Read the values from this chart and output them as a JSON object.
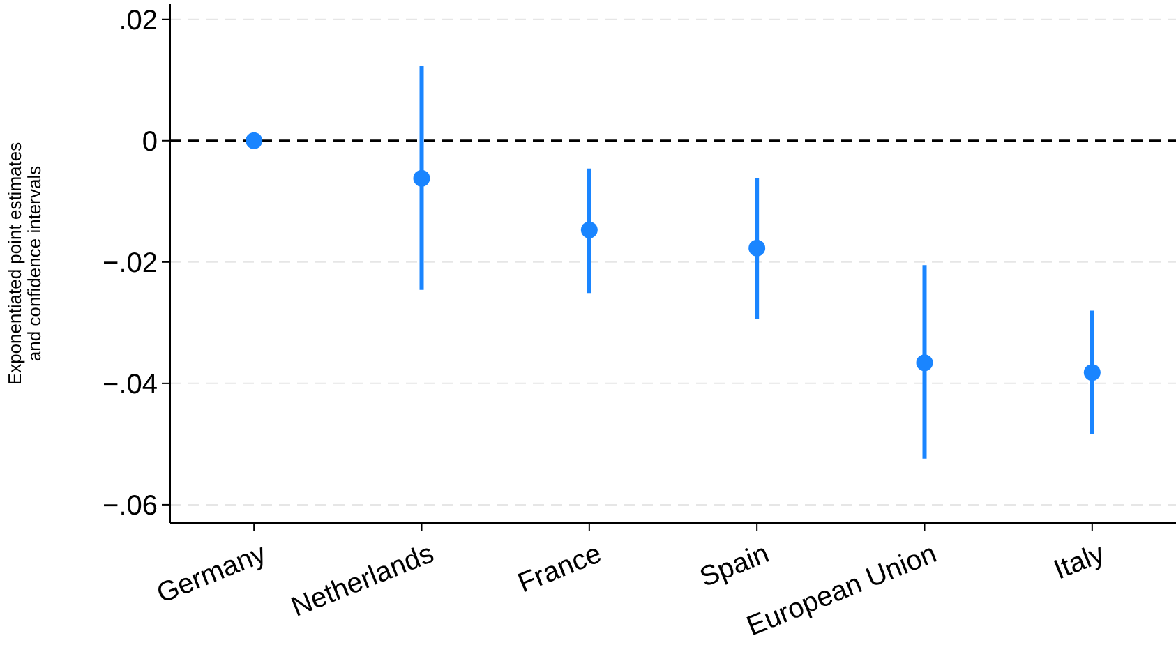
{
  "chart_data": {
    "type": "scatter",
    "ylabel": "Exponentiated point estimates\nand confidence intervals",
    "categories": [
      "Germany",
      "Netherlands",
      "France",
      "Spain",
      "European Union",
      "Italy"
    ],
    "values": [
      0,
      -0.0062,
      -0.0147,
      -0.0177,
      -0.0366,
      -0.0382
    ],
    "errors": [
      null,
      [
        -0.0246,
        0.0124
      ],
      [
        -0.0251,
        -0.0046
      ],
      [
        -0.0294,
        -0.0062
      ],
      [
        -0.0524,
        -0.0205
      ],
      [
        -0.0483,
        -0.028
      ]
    ],
    "color": "#1a85ff",
    "marker": "circle",
    "ylim": [
      -0.063,
      0.0225
    ],
    "yticks": [
      {
        "value": 0.02,
        "label": ".02"
      },
      {
        "value": 0,
        "label": "0"
      },
      {
        "value": -0.02,
        "label": "−.02"
      },
      {
        "value": -0.04,
        "label": "−.04"
      },
      {
        "value": -0.06,
        "label": "−.06"
      }
    ],
    "grid": "y",
    "ref_lines": [
      {
        "axis": "y",
        "value": 0,
        "color": "#000000",
        "line_style": "dashed"
      }
    ]
  }
}
